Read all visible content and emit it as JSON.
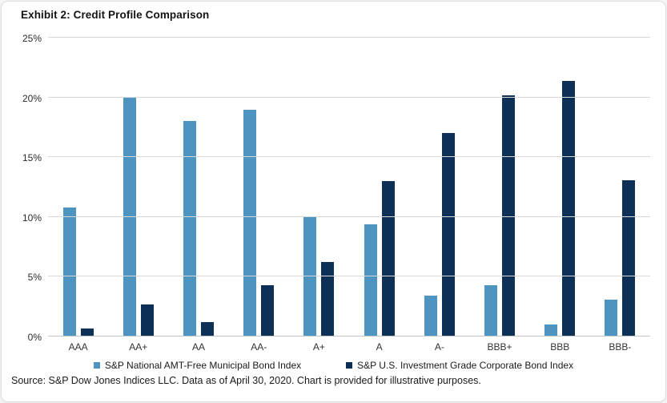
{
  "page": {
    "title": "Exhibit 2: Credit Profile Comparison",
    "source": "Source: S&P Dow Jones Indices LLC. Data as of April 30, 2020. Chart is provided for illustrative purposes."
  },
  "colors": {
    "muni": "#4d94c1",
    "corp": "#0e3057",
    "gridline": "#d9d9d9",
    "axis_line": "#c3c6c9"
  },
  "chart_data": {
    "type": "bar",
    "title": "Exhibit 2: Credit Profile Comparison",
    "categories": [
      "AAA",
      "AA+",
      "AA",
      "AA-",
      "A+",
      "A",
      "A-",
      "BBB+",
      "BBB",
      "BBB-"
    ],
    "series": [
      {
        "name": "S&P National AMT-Free Municipal Bond Index",
        "color": "#4d94c1",
        "values": [
          10.8,
          20.0,
          18.0,
          19.0,
          10.0,
          9.4,
          3.4,
          4.3,
          1.0,
          3.1
        ]
      },
      {
        "name": "S&P U.S. Investment Grade Corporate Bond Index",
        "color": "#0e3057",
        "values": [
          0.7,
          2.7,
          1.2,
          4.3,
          6.2,
          13.0,
          17.0,
          20.2,
          21.4,
          13.1
        ]
      }
    ],
    "xlabel": "",
    "ylabel": "",
    "ylim": [
      0,
      25
    ],
    "yticks": [
      0,
      5,
      10,
      15,
      20,
      25
    ],
    "ytick_suffix": "%",
    "grid": true,
    "legend_position": "bottom"
  }
}
